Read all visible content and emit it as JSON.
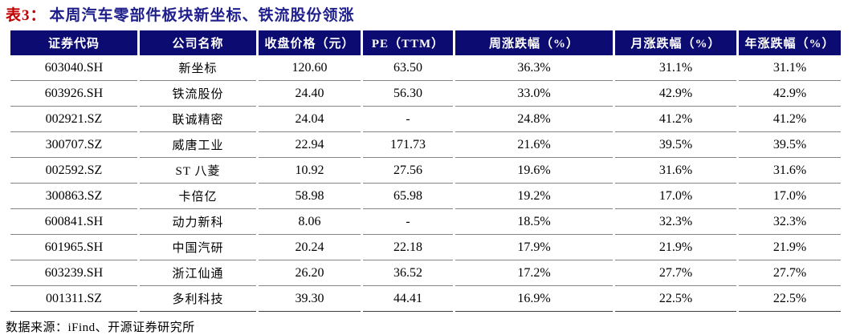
{
  "title": {
    "label": "表3：",
    "text": "本周汽车零部件板块新坐标、铁流股份领涨"
  },
  "table": {
    "columns": [
      "证券代码",
      "公司名称",
      "收盘价格（元）",
      "PE（TTM）",
      "周涨跌幅（%）",
      "月涨跌幅（%）",
      "年涨跌幅（%）"
    ],
    "rows": [
      [
        "603040.SH",
        "新坐标",
        "120.60",
        "63.50",
        "36.3%",
        "31.1%",
        "31.1%"
      ],
      [
        "603926.SH",
        "铁流股份",
        "24.40",
        "56.30",
        "33.0%",
        "42.9%",
        "42.9%"
      ],
      [
        "002921.SZ",
        "联诚精密",
        "24.04",
        "-",
        "24.8%",
        "41.2%",
        "41.2%"
      ],
      [
        "300707.SZ",
        "威唐工业",
        "22.94",
        "171.73",
        "21.6%",
        "39.5%",
        "39.5%"
      ],
      [
        "002592.SZ",
        "ST 八菱",
        "10.92",
        "27.56",
        "19.6%",
        "31.6%",
        "31.6%"
      ],
      [
        "300863.SZ",
        "卡倍亿",
        "58.98",
        "65.98",
        "19.2%",
        "17.0%",
        "17.0%"
      ],
      [
        "600841.SH",
        "动力新科",
        "8.06",
        "-",
        "18.5%",
        "32.3%",
        "32.3%"
      ],
      [
        "601965.SH",
        "中国汽研",
        "20.24",
        "22.18",
        "17.9%",
        "21.9%",
        "21.9%"
      ],
      [
        "603239.SH",
        "浙江仙通",
        "26.20",
        "36.52",
        "17.2%",
        "27.7%",
        "27.7%"
      ],
      [
        "001311.SZ",
        "多利科技",
        "39.30",
        "44.41",
        "16.9%",
        "22.5%",
        "22.5%"
      ]
    ]
  },
  "footer": {
    "source_text": "数据来源：iFind、开源证券研究所"
  },
  "colors": {
    "header_bg": "#0b0b72",
    "title_label": "#c00000",
    "title_text": "#1e1e8c",
    "row_divider": "#858585"
  }
}
